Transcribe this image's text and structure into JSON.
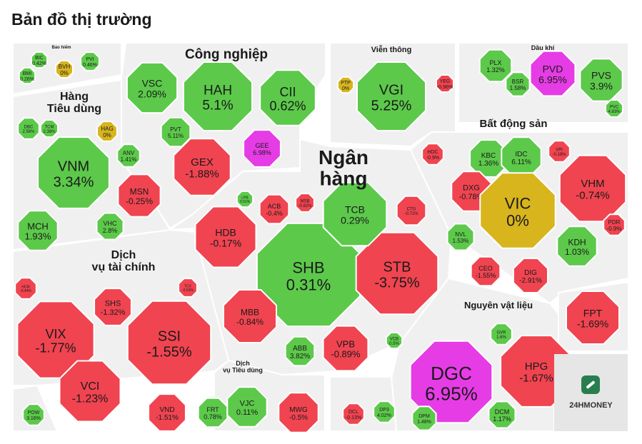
{
  "page": {
    "title": "Bản đồ thị trường"
  },
  "brand": {
    "logo_text": "24HMONEY"
  },
  "colors": {
    "up": "#5cc94a",
    "down": "#f04450",
    "ceiling": "#e63ce6",
    "flat": "#d8b41d",
    "panel": "#f0f0f0"
  },
  "chart_data": {
    "type": "heatmap",
    "sectors": [
      {
        "name": "Bảo hiểm",
        "stocks": [
          {
            "ticker": "BIC",
            "change": "0.42%"
          },
          {
            "ticker": "BVH",
            "change": "0%"
          },
          {
            "ticker": "PVI",
            "change": "0.46%"
          },
          {
            "ticker": "BMI",
            "change": "0.26%"
          }
        ]
      },
      {
        "name": "Công nghiệp",
        "stocks": [
          {
            "ticker": "VSC",
            "change": "2.09%"
          },
          {
            "ticker": "HAH",
            "change": "5.1%"
          },
          {
            "ticker": "CII",
            "change": "0.62%"
          },
          {
            "ticker": "PVT",
            "change": "5.11%"
          },
          {
            "ticker": "GEE",
            "change": "6.98%"
          },
          {
            "ticker": "GEX",
            "change": "-1.88%"
          }
        ]
      },
      {
        "name": "Viễn thông",
        "stocks": [
          {
            "ticker": "VGI",
            "change": "5.25%"
          },
          {
            "ticker": "PTP",
            "change": "0%"
          },
          {
            "ticker": "YEG",
            "change": "-0.96%"
          }
        ]
      },
      {
        "name": "Dầu khí",
        "stocks": [
          {
            "ticker": "PLX",
            "change": "1.32%"
          },
          {
            "ticker": "PVD",
            "change": "6.95%"
          },
          {
            "ticker": "PVS",
            "change": "3.9%"
          },
          {
            "ticker": "BSR",
            "change": "1.58%"
          },
          {
            "ticker": "PVC",
            "change": "4.83%"
          }
        ]
      },
      {
        "name": "Hàng\nTiêu dùng",
        "stocks": [
          {
            "ticker": "DBC",
            "change": "2.56%"
          },
          {
            "ticker": "TCM",
            "change": "2.38%"
          },
          {
            "ticker": "HAG",
            "change": "0%"
          },
          {
            "ticker": "VNM",
            "change": "3.34%"
          },
          {
            "ticker": "ANV",
            "change": "1.41%"
          },
          {
            "ticker": "MSN",
            "change": "-0.25%"
          },
          {
            "ticker": "MCH",
            "change": "1.93%"
          },
          {
            "ticker": "VHC",
            "change": "2.8%"
          }
        ]
      },
      {
        "name": "Ngân\nhàng",
        "stocks": [
          {
            "ticker": "SHB",
            "change": "0.31%"
          },
          {
            "ticker": "STB",
            "change": "-3.75%"
          },
          {
            "ticker": "TCB",
            "change": "0.29%"
          },
          {
            "ticker": "HDB",
            "change": "-0.17%"
          },
          {
            "ticker": "ACB",
            "change": "-0.4%"
          },
          {
            "ticker": "MSB",
            "change": "-0.82%"
          },
          {
            "ticker": "CTG",
            "change": "-0.71%"
          },
          {
            "ticker": "LPB",
            "change": "0.51%"
          },
          {
            "ticker": "MBB",
            "change": "-0.84%"
          },
          {
            "ticker": "VPB",
            "change": "-0.89%"
          },
          {
            "ticker": "ABB",
            "change": "3.82%"
          },
          {
            "ticker": "VCB",
            "change": "0.5%"
          }
        ]
      },
      {
        "name": "Bất động sản",
        "stocks": [
          {
            "ticker": "HDC",
            "change": "-0.9%"
          },
          {
            "ticker": "KBC",
            "change": "1.36%"
          },
          {
            "ticker": "IDC",
            "change": "6.11%"
          },
          {
            "ticker": "VPI",
            "change": "-0.18%"
          },
          {
            "ticker": "VHM",
            "change": "-0.74%"
          },
          {
            "ticker": "DXG",
            "change": "-0.78%"
          },
          {
            "ticker": "VIC",
            "change": "0%"
          },
          {
            "ticker": "PDR",
            "change": "-0.9%"
          },
          {
            "ticker": "NVL",
            "change": "1.53%"
          },
          {
            "ticker": "KDH",
            "change": "1.03%"
          },
          {
            "ticker": "CEO",
            "change": "-1.55%"
          },
          {
            "ticker": "DIG",
            "change": "-2.91%"
          }
        ]
      },
      {
        "name": "Dịch\nvụ tài chính",
        "stocks": [
          {
            "ticker": "HCM",
            "change": "-0.44%"
          },
          {
            "ticker": "SHS",
            "change": "-1.32%"
          },
          {
            "ticker": "TCX",
            "change": "-0.53%"
          },
          {
            "ticker": "VIX",
            "change": "-1.77%"
          },
          {
            "ticker": "SSI",
            "change": "-1.55%"
          },
          {
            "ticker": "VCI",
            "change": "-1.23%"
          },
          {
            "ticker": "VND",
            "change": "-1.51%"
          }
        ]
      },
      {
        "name": "",
        "stocks": [
          {
            "ticker": "FPT",
            "change": "-1.69%"
          }
        ]
      },
      {
        "name": "Nguyên vật liệu",
        "stocks": [
          {
            "ticker": "DGC",
            "change": "6.95%"
          },
          {
            "ticker": "HPG",
            "change": "-1.67%"
          },
          {
            "ticker": "GVR",
            "change": "1.6%"
          },
          {
            "ticker": "DPM",
            "change": "1.48%"
          },
          {
            "ticker": "DCM",
            "change": "1.17%"
          }
        ]
      },
      {
        "name": "Dịch\nvụ Tiêu dùng",
        "stocks": [
          {
            "ticker": "FRT",
            "change": "0.78%"
          },
          {
            "ticker": "VJC",
            "change": "0.11%"
          },
          {
            "ticker": "MWG",
            "change": "-0.5%"
          }
        ]
      },
      {
        "name": "",
        "stocks": [
          {
            "ticker": "DCL",
            "change": "-0.13%"
          },
          {
            "ticker": "DP3",
            "change": "4.02%"
          }
        ]
      },
      {
        "name": "",
        "stocks": [
          {
            "ticker": "POW",
            "change": "3.16%"
          }
        ]
      }
    ]
  }
}
